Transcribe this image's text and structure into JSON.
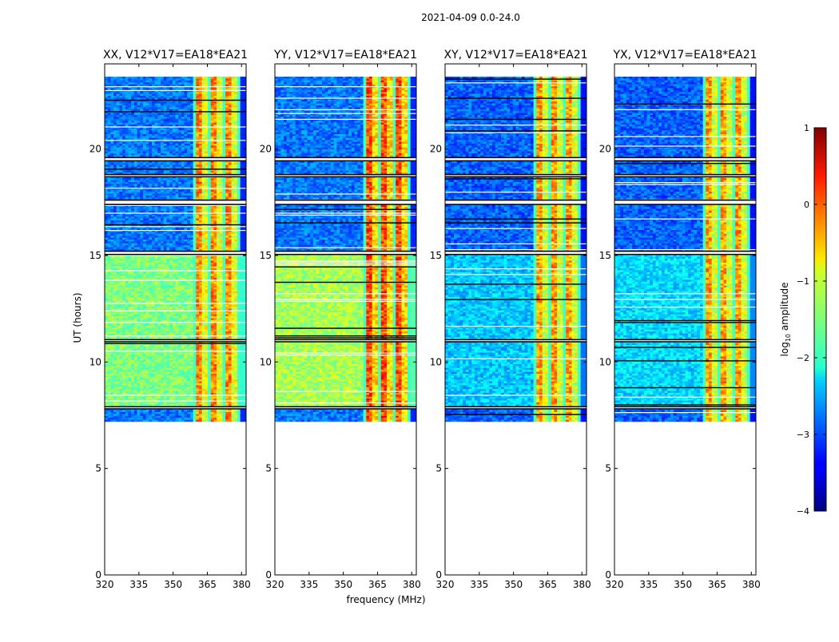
{
  "chart_data": {
    "type": "heatmap",
    "suptitle": "2021-04-09 0.0-24.0",
    "xlabel": "frequency (MHz)",
    "ylabel": "UT (hours)",
    "xlim": [
      320,
      382
    ],
    "ylim": [
      0,
      24
    ],
    "xticks": [
      320,
      335,
      350,
      365,
      380
    ],
    "yticks": [
      0,
      5,
      10,
      15,
      20
    ],
    "data_start_hour": 7.2,
    "data_end_hour": 23.4,
    "panels": [
      {
        "title": "XX, V12*V17=EA18*EA21",
        "polarization": "XX",
        "base_level": -2.8,
        "mid_level": -1.5,
        "strong_band_level": -0.6
      },
      {
        "title": "YY, V12*V17=EA18*EA21",
        "polarization": "YY",
        "base_level": -2.8,
        "mid_level": -1.3,
        "strong_band_level": -0.3
      },
      {
        "title": "XY, V12*V17=EA18*EA21",
        "polarization": "XY",
        "base_level": -2.9,
        "mid_level": -2.4,
        "strong_band_level": -0.7
      },
      {
        "title": "YX, V12*V17=EA18*EA21",
        "polarization": "YX",
        "base_level": -2.9,
        "mid_level": -2.3,
        "strong_band_level": -0.7
      }
    ],
    "gap_hours": [
      [
        17.4,
        17.6
      ],
      [
        18.7,
        18.8
      ],
      [
        19.45,
        19.6
      ],
      [
        15.05,
        15.2
      ],
      [
        10.95,
        11.05
      ],
      [
        7.8,
        7.9
      ]
    ],
    "rfi_band_mhz": [
      359,
      379
    ],
    "colorbar": {
      "label": "log10 amplitude",
      "label_prefix": "log",
      "label_sub": "10",
      "label_suffix": " amplitude",
      "range": [
        -4,
        1
      ],
      "ticks": [
        1,
        0,
        -1,
        -2,
        -3,
        -4
      ],
      "tick_labels": [
        "1",
        "0",
        "−1",
        "−2",
        "−3",
        "−4"
      ],
      "colormap": "jet"
    }
  }
}
